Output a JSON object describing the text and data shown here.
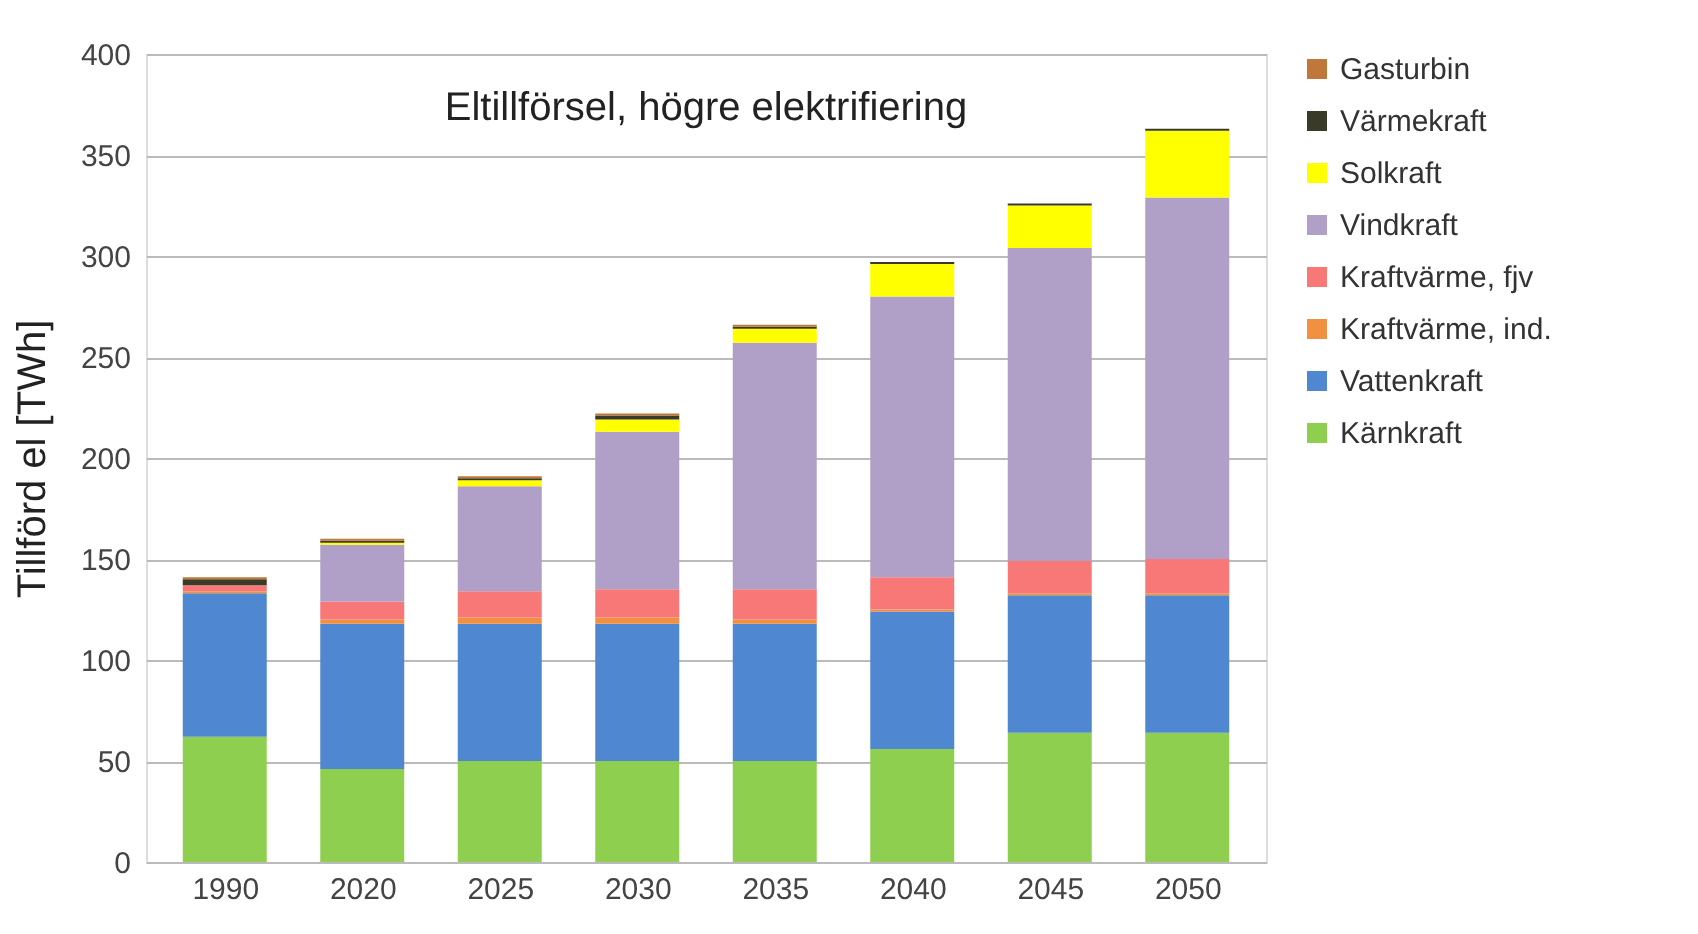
{
  "chart_data": {
    "type": "bar",
    "stacked": true,
    "title": "Eltillförsel, högre elektrifiering",
    "ylabel": "Tillförd el [TWh]",
    "categories": [
      "1990",
      "2020",
      "2025",
      "2030",
      "2035",
      "2040",
      "2045",
      "2050"
    ],
    "series": [
      {
        "name": "Kärnkraft",
        "color": "#8ecf50",
        "values": [
          62,
          46,
          50,
          50,
          50,
          56,
          64,
          64
        ]
      },
      {
        "name": "Vattenkraft",
        "color": "#4f88d0",
        "values": [
          71,
          72,
          68,
          68,
          68,
          68,
          68,
          68
        ]
      },
      {
        "name": "Kraftvärme, ind.",
        "color": "#f09040",
        "values": [
          1,
          2,
          3,
          3,
          2,
          1,
          1,
          1
        ]
      },
      {
        "name": "Kraftvärme, fjv",
        "color": "#f87878",
        "values": [
          3,
          9,
          13,
          14,
          15,
          16,
          16,
          17
        ]
      },
      {
        "name": "Vindkraft",
        "color": "#b0a0c8",
        "values": [
          0,
          28,
          52,
          78,
          122,
          139,
          155,
          179
        ]
      },
      {
        "name": "Solkraft",
        "color": "#ffff00",
        "values": [
          0,
          1,
          3,
          6,
          7,
          16,
          21,
          33
        ]
      },
      {
        "name": "Värmekraft",
        "color": "#3a3a28",
        "values": [
          3,
          1,
          1,
          2,
          1,
          1,
          1,
          1
        ]
      },
      {
        "name": "Gasturbin",
        "color": "#c0783a",
        "values": [
          1,
          1,
          1,
          1,
          1,
          0,
          0,
          0
        ]
      }
    ],
    "ylim": [
      0,
      400
    ],
    "yticks": [
      0,
      50,
      100,
      150,
      200,
      250,
      300,
      350,
      400
    ],
    "grid": "y",
    "legend": "right"
  }
}
